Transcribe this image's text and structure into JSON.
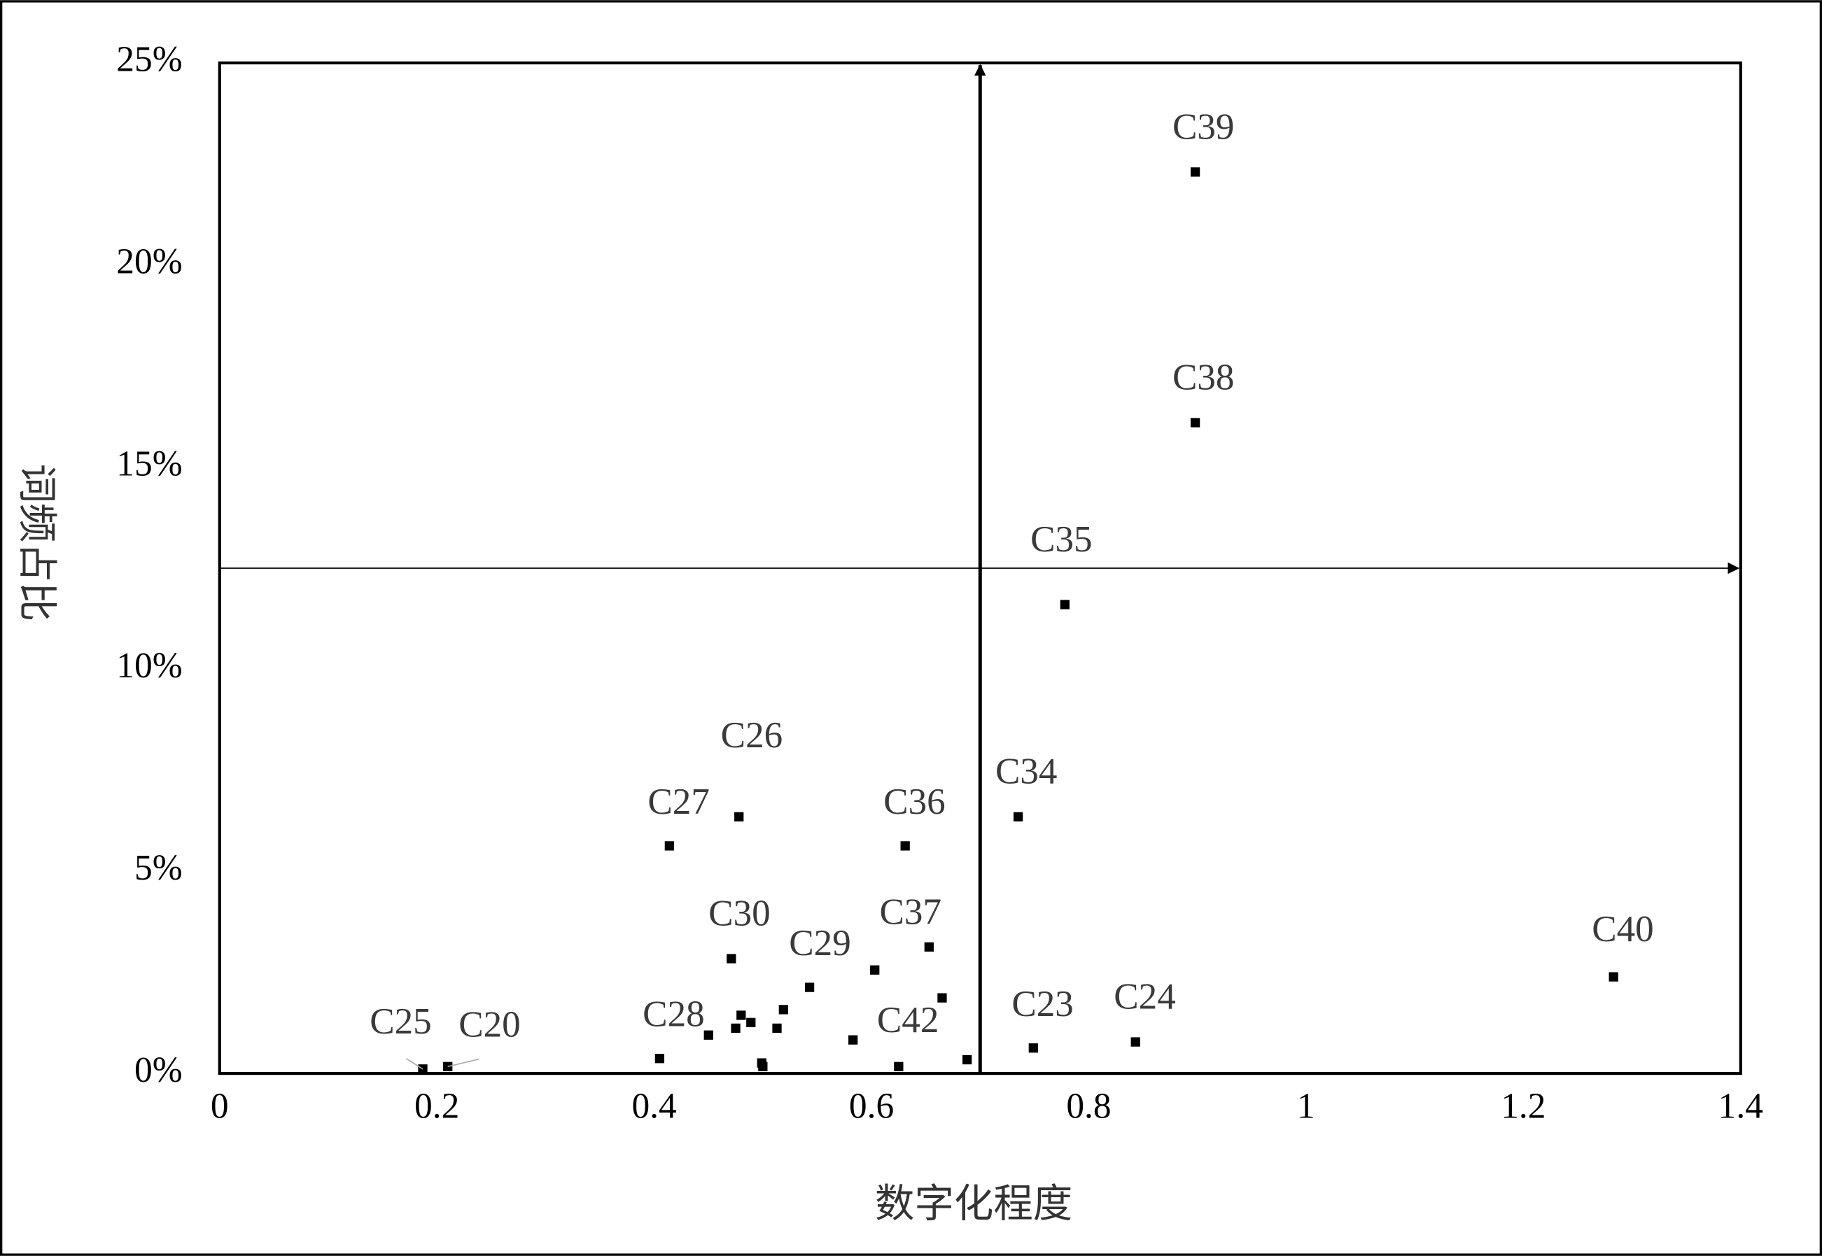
{
  "chart_data": {
    "type": "scatter",
    "xlabel": "数字化程度",
    "ylabel": "词频占比",
    "x": [
      0.898,
      0.898,
      0.778,
      0.735,
      0.478,
      0.414,
      0.631,
      1.283,
      0.653,
      0.471,
      0.543,
      0.749,
      0.843,
      0.45,
      0.625,
      0.187,
      0.21,
      0.603,
      0.665,
      0.519,
      0.48,
      0.489,
      0.475,
      0.513,
      0.583,
      0.405,
      0.499,
      0.5,
      0.688
    ],
    "y": [
      22.3,
      16.1,
      11.6,
      6.35,
      6.35,
      5.63,
      5.63,
      2.39,
      3.13,
      2.84,
      2.13,
      0.63,
      0.78,
      0.95,
      0.17,
      0.11,
      0.17,
      2.56,
      1.87,
      1.58,
      1.44,
      1.26,
      1.12,
      1.12,
      0.83,
      0.37,
      0.26,
      0.17,
      0.34
    ],
    "labels": [
      "C39",
      "C38",
      "C35",
      "C34",
      "C26",
      "C27",
      "C36",
      "C40",
      "C37",
      "C30",
      "C29",
      "C23",
      "C24",
      "C28",
      "C42",
      "C25",
      "C20",
      null,
      null,
      null,
      null,
      null,
      null,
      null,
      null,
      null,
      null,
      null,
      null
    ],
    "color": "#000000",
    "xlim": [
      0,
      1.4
    ],
    "xticks": [
      0,
      0.2,
      0.4,
      0.6,
      0.8,
      1,
      1.2,
      1.4
    ],
    "ylim": [
      0,
      25
    ],
    "yticks": [
      {
        "value": 0,
        "label": "0%"
      },
      {
        "value": 5,
        "label": "5%"
      },
      {
        "value": 10,
        "label": "10%"
      },
      {
        "value": 15,
        "label": "15%"
      },
      {
        "value": 20,
        "label": "20%"
      },
      {
        "value": 25,
        "label": "25%"
      }
    ],
    "reference_lines": {
      "x": 0.7,
      "y": 12.5
    }
  }
}
